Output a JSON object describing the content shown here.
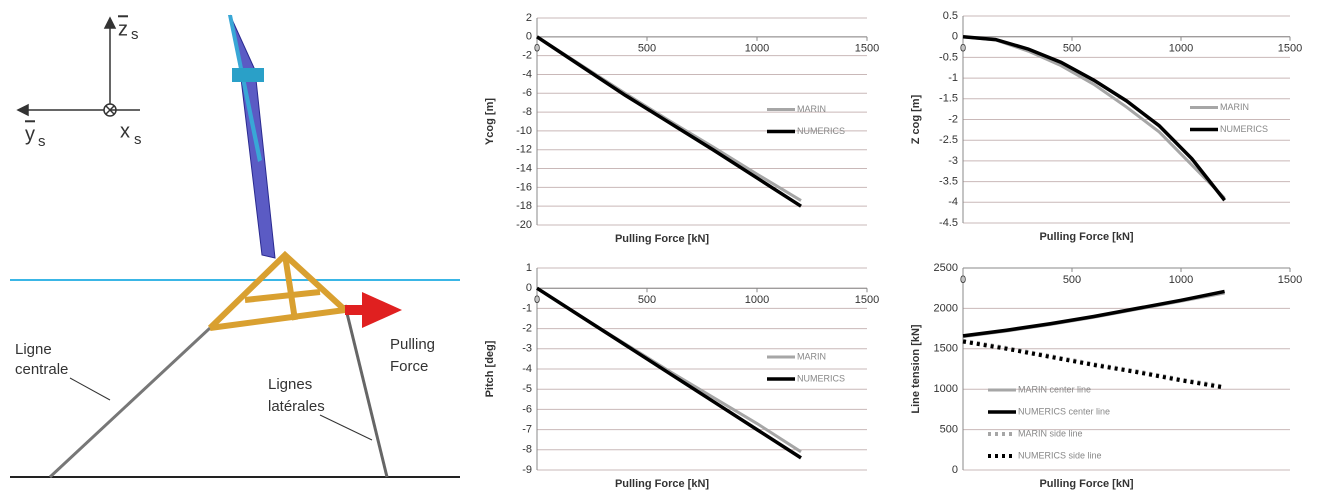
{
  "diagram": {
    "axes": [
      {
        "letter": "z",
        "sub": "s"
      },
      {
        "letter": "y",
        "sub": "s"
      },
      {
        "letter": "x",
        "sub": "s"
      }
    ],
    "labels": [
      "Ligne",
      "centrale",
      "Lignes",
      "latérales",
      "Pulling",
      "Force"
    ]
  },
  "chart_data": [
    {
      "type": "line",
      "y_label": "Ycog [m]",
      "x_label": "Pulling Force [kN]",
      "legend": "right",
      "xlim": [
        0,
        1500
      ],
      "xticks": [
        0,
        500,
        1000,
        1500
      ],
      "ylim": [
        -20,
        2
      ],
      "yticks": [
        2,
        0,
        -2,
        -4,
        -6,
        -8,
        -10,
        -12,
        -14,
        -16,
        -18,
        -20
      ],
      "grid": true,
      "x": [
        0,
        200,
        400,
        600,
        800,
        1000,
        1200
      ],
      "series": [
        {
          "name": "MARIN",
          "color": "#a6a6a6",
          "width": 3,
          "values": [
            0,
            -3,
            -6,
            -8.9,
            -11.7,
            -14.6,
            -17.4
          ]
        },
        {
          "name": "NUMERICS",
          "color": "#000000",
          "width": 3.5,
          "values": [
            0,
            -3.1,
            -6.2,
            -9.1,
            -12,
            -15,
            -18
          ]
        }
      ]
    },
    {
      "type": "line",
      "y_label": "Z cog [m]",
      "x_label": "Pulling Force [kN]",
      "legend": "right",
      "xlim": [
        0,
        1500
      ],
      "xticks": [
        0,
        500,
        1000,
        1500
      ],
      "ylim": [
        -4.5,
        0.5
      ],
      "yticks": [
        0.5,
        0,
        -0.5,
        -1,
        -1.5,
        -2,
        -2.5,
        -3,
        -3.5,
        -4,
        -4.5
      ],
      "grid": true,
      "x": [
        0,
        150,
        300,
        450,
        600,
        750,
        900,
        1050,
        1200
      ],
      "series": [
        {
          "name": "MARIN",
          "color": "#a6a6a6",
          "width": 3,
          "values": [
            0,
            -0.08,
            -0.35,
            -0.7,
            -1.15,
            -1.7,
            -2.3,
            -3.1,
            -3.9
          ]
        },
        {
          "name": "NUMERICS",
          "color": "#000000",
          "width": 3.5,
          "values": [
            0,
            -0.07,
            -0.3,
            -0.62,
            -1.05,
            -1.55,
            -2.15,
            -2.95,
            -3.95
          ]
        }
      ]
    },
    {
      "type": "line",
      "y_label": "Pitch [deg]",
      "x_label": "Pulling Force [kN]",
      "legend": "right",
      "xlim": [
        0,
        1500
      ],
      "xticks": [
        0,
        500,
        1000,
        1500
      ],
      "ylim": [
        -9,
        1
      ],
      "yticks": [
        1,
        0,
        -1,
        -2,
        -3,
        -4,
        -5,
        -6,
        -7,
        -8,
        -9
      ],
      "grid": true,
      "x": [
        0,
        200,
        400,
        600,
        800,
        1000,
        1200
      ],
      "series": [
        {
          "name": "MARIN",
          "color": "#a6a6a6",
          "width": 3,
          "values": [
            0,
            -1.4,
            -2.75,
            -4.1,
            -5.4,
            -6.7,
            -8.1
          ]
        },
        {
          "name": "NUMERICS",
          "color": "#000000",
          "width": 3.5,
          "values": [
            0,
            -1.4,
            -2.8,
            -4.2,
            -5.6,
            -7,
            -8.4
          ]
        }
      ]
    },
    {
      "type": "line",
      "y_label": "Line tension [kN]",
      "x_label": "Pulling Force [kN]",
      "legend": "lower-left",
      "xlim": [
        0,
        1500
      ],
      "xticks": [
        0,
        500,
        1000,
        1500
      ],
      "ylim": [
        0,
        2500
      ],
      "yticks": [
        2500,
        2000,
        1500,
        1000,
        500,
        0
      ],
      "grid": true,
      "x": [
        0,
        200,
        400,
        600,
        800,
        1000,
        1200
      ],
      "series": [
        {
          "name": "MARIN center line",
          "color": "#a6a6a6",
          "width": 3,
          "dash": "solid",
          "values": [
            1650,
            1720,
            1800,
            1890,
            1990,
            2090,
            2190
          ]
        },
        {
          "name": "NUMERICS center line",
          "color": "#000000",
          "width": 3.5,
          "dash": "solid",
          "values": [
            1660,
            1730,
            1810,
            1900,
            2000,
            2100,
            2210
          ]
        },
        {
          "name": "MARIN side line",
          "color": "#a6a6a6",
          "width": 4,
          "dash": "dotted",
          "values": [
            1600,
            1510,
            1410,
            1310,
            1220,
            1120,
            1030
          ]
        },
        {
          "name": "NUMERICS side line",
          "color": "#000000",
          "width": 4,
          "dash": "dotted",
          "values": [
            1590,
            1500,
            1400,
            1300,
            1210,
            1110,
            1020
          ]
        }
      ]
    }
  ]
}
